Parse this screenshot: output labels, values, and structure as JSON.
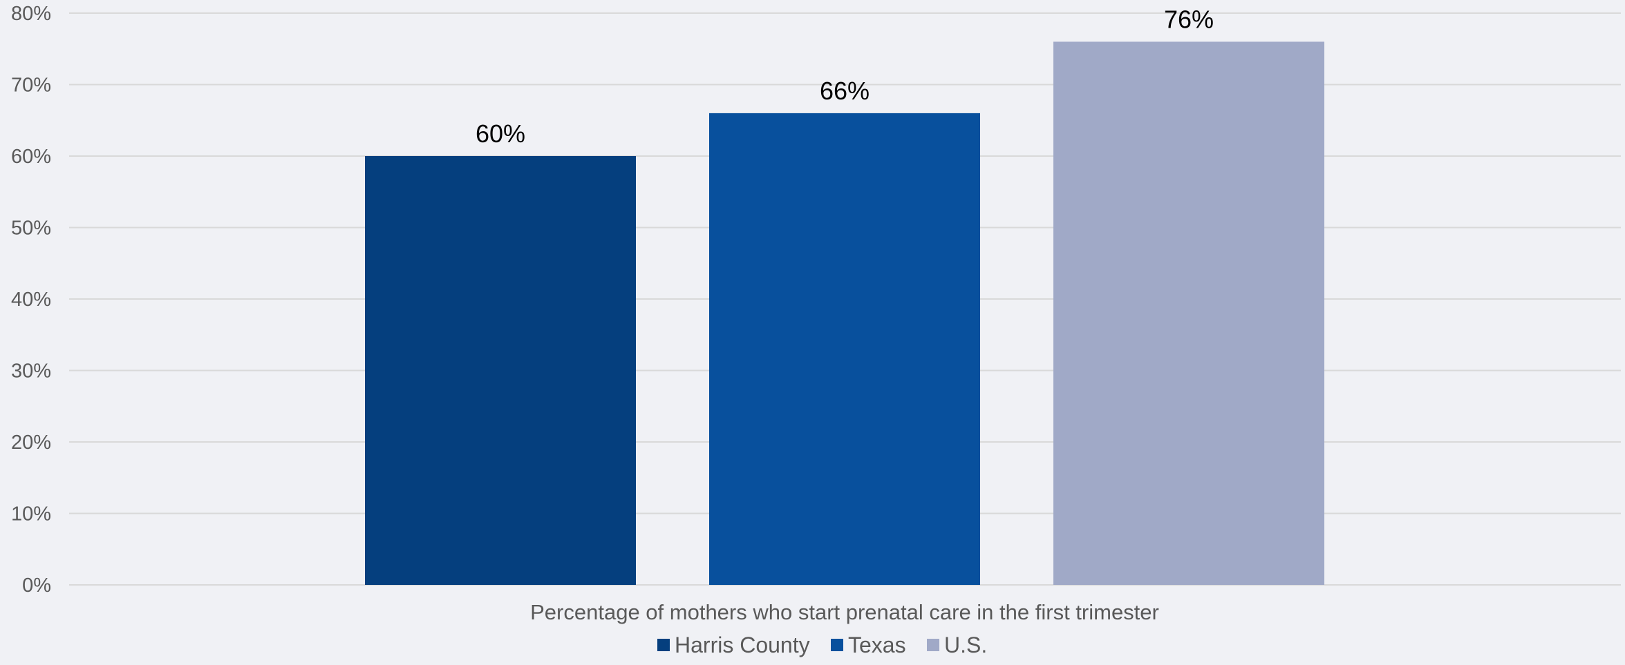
{
  "chart_data": {
    "type": "bar",
    "title": "",
    "xlabel": "Percentage of mothers who start prenatal care in the first trimester",
    "ylabel": "",
    "ylim": [
      0,
      80
    ],
    "y_ticks": [
      "0%",
      "10%",
      "20%",
      "30%",
      "40%",
      "50%",
      "60%",
      "70%",
      "80%"
    ],
    "grid": true,
    "legend_position": "bottom",
    "series": [
      {
        "name": "Harris County",
        "value": 60,
        "label": "60%",
        "color": "#053f7e"
      },
      {
        "name": "Texas",
        "value": 66,
        "label": "66%",
        "color": "#08509d"
      },
      {
        "name": "U.S.",
        "value": 76,
        "label": "76%",
        "color": "#a0a9c7"
      }
    ]
  }
}
